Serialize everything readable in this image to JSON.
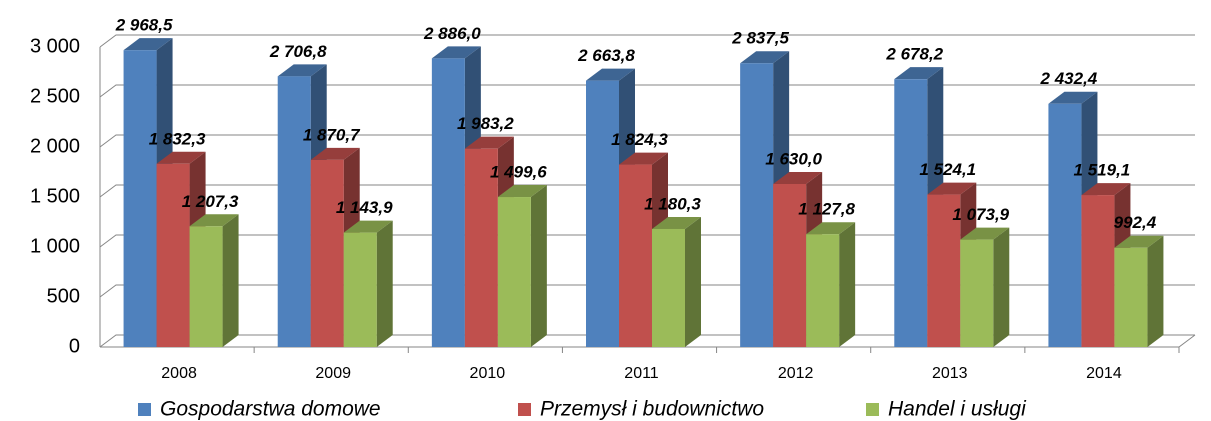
{
  "chart_data": {
    "type": "bar3d",
    "categories": [
      "2008",
      "2009",
      "2010",
      "2011",
      "2012",
      "2013",
      "2014"
    ],
    "series": [
      {
        "name": "Gospodarstwa domowe",
        "color": "#4f81bd",
        "values": [
          2968.5,
          2706.8,
          2886.0,
          2663.8,
          2837.5,
          2678.2,
          2432.4
        ],
        "value_labels": [
          "2 968,5",
          "2 706,8",
          "2 886,0",
          "2 663,8",
          "2 837,5",
          "2 678,2",
          "2 432,4"
        ]
      },
      {
        "name": "Przemysł i budownictwo",
        "color": "#c0504d",
        "values": [
          1832.3,
          1870.7,
          1983.2,
          1824.3,
          1630.0,
          1524.1,
          1519.1
        ],
        "value_labels": [
          "1 832,3",
          "1 870,7",
          "1 983,2",
          "1 824,3",
          "1 630,0",
          "1 524,1",
          "1 519,1"
        ]
      },
      {
        "name": "Handel i usługi",
        "color": "#9bbb59",
        "values": [
          1207.3,
          1143.9,
          1499.6,
          1180.3,
          1127.8,
          1073.9,
          992.4
        ],
        "value_labels": [
          "1 207,3",
          "1 143,9",
          "1 499,6",
          "1 180,3",
          "1 127,8",
          "1 073,9",
          "992,4"
        ]
      }
    ],
    "ylim": [
      0,
      3000
    ],
    "yticks": [
      0,
      500,
      {
        "value": 1000,
        "label": "1 000"
      },
      {
        "value": 1500,
        "label": "1 500"
      },
      {
        "value": 2000,
        "label": "2 000"
      },
      {
        "value": 2500,
        "label": "2 500"
      },
      {
        "value": 3000,
        "label": "3 000"
      }
    ],
    "grid": true,
    "legend": "bottom"
  }
}
